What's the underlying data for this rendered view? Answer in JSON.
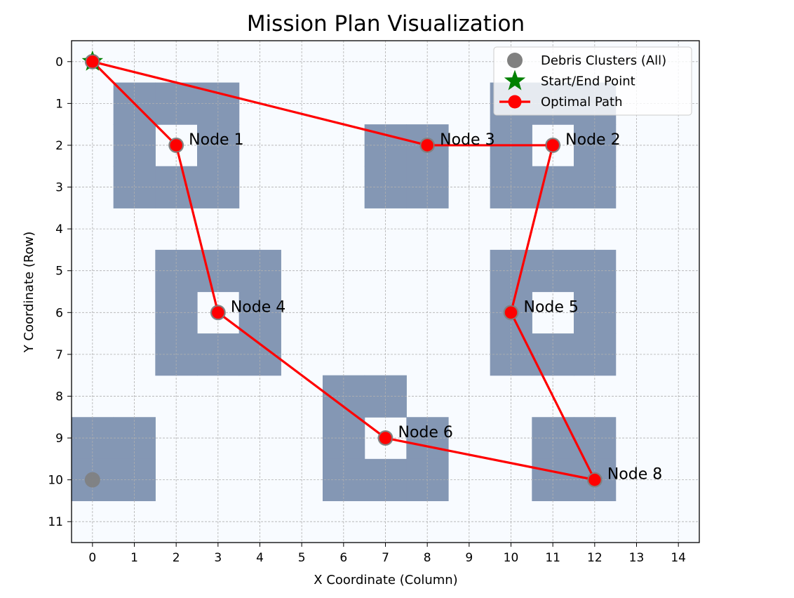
{
  "chart_data": {
    "type": "scatter",
    "title": "Mission Plan Visualization",
    "xlabel": "X Coordinate (Column)",
    "ylabel": "Y Coordinate (Row)",
    "xlim": [
      -0.5,
      14.5
    ],
    "ylim": [
      11.5,
      -0.5
    ],
    "y_inverted": true,
    "xticks": [
      0,
      1,
      2,
      3,
      4,
      5,
      6,
      7,
      8,
      9,
      10,
      11,
      12,
      13,
      14
    ],
    "yticks": [
      0,
      1,
      2,
      3,
      4,
      5,
      6,
      7,
      8,
      9,
      10,
      11
    ],
    "grid": true,
    "legend_position": "top-right",
    "colors": {
      "background": "#f8fbff",
      "obstacle": "#8497b4",
      "debris": "#808080",
      "start": "#008000",
      "path": "#ff0000",
      "grid": "#b0b0b0"
    },
    "obstacle_grid": [
      [
        0,
        0,
        0,
        0,
        0,
        0,
        0,
        0,
        0,
        0,
        0,
        0,
        0,
        0,
        0
      ],
      [
        0,
        1,
        1,
        1,
        0,
        0,
        0,
        0,
        0,
        0,
        1,
        1,
        1,
        0,
        0
      ],
      [
        0,
        1,
        0,
        1,
        0,
        0,
        0,
        1,
        1,
        0,
        1,
        0,
        1,
        0,
        0
      ],
      [
        0,
        1,
        1,
        1,
        0,
        0,
        0,
        1,
        1,
        0,
        1,
        1,
        1,
        0,
        0
      ],
      [
        0,
        0,
        0,
        0,
        0,
        0,
        0,
        0,
        0,
        0,
        0,
        0,
        0,
        0,
        0
      ],
      [
        0,
        0,
        1,
        1,
        1,
        0,
        0,
        0,
        0,
        0,
        1,
        1,
        1,
        0,
        0
      ],
      [
        0,
        0,
        1,
        0,
        1,
        0,
        0,
        0,
        0,
        0,
        1,
        0,
        1,
        0,
        0
      ],
      [
        0,
        0,
        1,
        1,
        1,
        0,
        0,
        0,
        0,
        0,
        1,
        1,
        1,
        0,
        0
      ],
      [
        0,
        0,
        0,
        0,
        0,
        0,
        1,
        1,
        0,
        0,
        0,
        0,
        0,
        0,
        0
      ],
      [
        1,
        1,
        0,
        0,
        0,
        0,
        1,
        0,
        1,
        0,
        0,
        1,
        1,
        0,
        0
      ],
      [
        1,
        1,
        0,
        0,
        0,
        0,
        1,
        1,
        1,
        0,
        0,
        1,
        1,
        0,
        0
      ],
      [
        0,
        0,
        0,
        0,
        0,
        0,
        0,
        0,
        0,
        0,
        0,
        0,
        0,
        0,
        0
      ]
    ],
    "debris_points": [
      {
        "x": 0,
        "y": 0
      },
      {
        "x": 2,
        "y": 2
      },
      {
        "x": 11,
        "y": 2
      },
      {
        "x": 8,
        "y": 2
      },
      {
        "x": 3,
        "y": 6
      },
      {
        "x": 10,
        "y": 6
      },
      {
        "x": 7,
        "y": 9
      },
      {
        "x": 0,
        "y": 10
      },
      {
        "x": 12,
        "y": 10
      }
    ],
    "start_end": {
      "x": 0,
      "y": 0
    },
    "path": [
      {
        "x": 0,
        "y": 0
      },
      {
        "x": 2,
        "y": 2
      },
      {
        "x": 3,
        "y": 6
      },
      {
        "x": 7,
        "y": 9
      },
      {
        "x": 12,
        "y": 10
      },
      {
        "x": 10,
        "y": 6
      },
      {
        "x": 11,
        "y": 2
      },
      {
        "x": 8,
        "y": 2
      },
      {
        "x": 0,
        "y": 0
      }
    ],
    "node_labels": [
      {
        "text": "Node 1",
        "x": 2,
        "y": 2
      },
      {
        "text": "Node 3",
        "x": 8,
        "y": 2
      },
      {
        "text": "Node 2",
        "x": 11,
        "y": 2
      },
      {
        "text": "Node 4",
        "x": 3,
        "y": 6
      },
      {
        "text": "Node 5",
        "x": 10,
        "y": 6
      },
      {
        "text": "Node 6",
        "x": 7,
        "y": 9
      },
      {
        "text": "Node 8",
        "x": 12,
        "y": 10
      }
    ],
    "legend": [
      {
        "label": "Debris Clusters (All)",
        "marker": "circle",
        "color": "#808080"
      },
      {
        "label": "Start/End Point",
        "marker": "star",
        "color": "#008000"
      },
      {
        "label": "Optimal Path",
        "marker": "line-circle",
        "color": "#ff0000"
      }
    ]
  }
}
